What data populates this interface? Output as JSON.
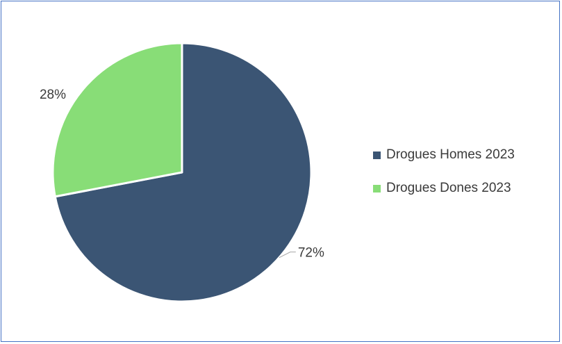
{
  "chart_data": {
    "type": "pie",
    "series": [
      {
        "name": "Drogues Homes 2023",
        "value": 72,
        "label": "72%",
        "color": "#3b5574"
      },
      {
        "name": "Drogues Dones 2023",
        "value": 28,
        "label": "28%",
        "color": "#88dd77"
      }
    ],
    "title": "",
    "legend_position": "right"
  },
  "legend": {
    "items": [
      {
        "label": "Drogues Homes 2023",
        "color": "#3b5574"
      },
      {
        "label": "Drogues Dones 2023",
        "color": "#88dd77"
      }
    ]
  },
  "colors": {
    "border": "#4472c4",
    "background": "#ffffff"
  }
}
